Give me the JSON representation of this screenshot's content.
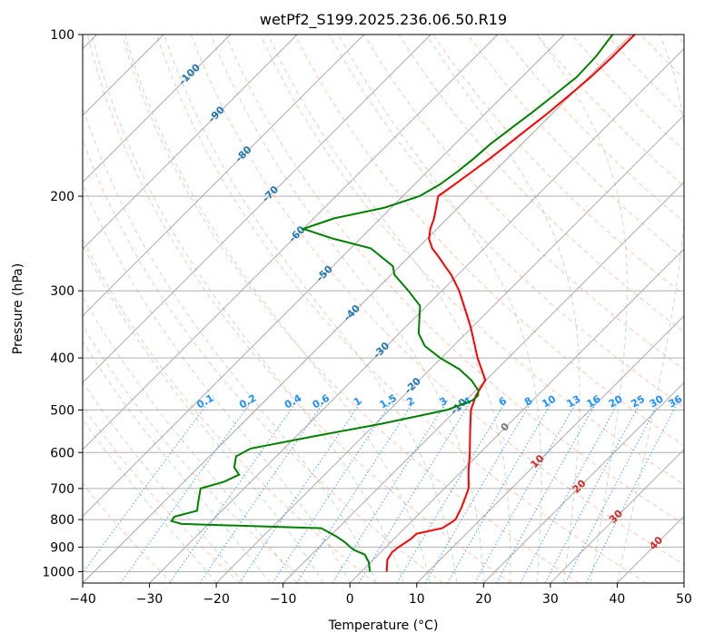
{
  "chart_data": {
    "type": "line",
    "title": "wetPf2_S199.2025.236.06.50.R19",
    "xlabel": "Temperature (°C)",
    "ylabel": "Pressure (hPa)",
    "xlim": [
      -40,
      50
    ],
    "ylim": [
      1050,
      100
    ],
    "y_scale": "log",
    "skew": true,
    "grid": true,
    "x_ticks": [
      "−40",
      "−30",
      "−20",
      "−10",
      "0",
      "10",
      "20",
      "30",
      "40",
      "50"
    ],
    "x_tick_values": [
      -40,
      -30,
      -20,
      -10,
      0,
      10,
      20,
      30,
      40,
      50
    ],
    "y_ticks": [
      "100",
      "200",
      "300",
      "400",
      "500",
      "600",
      "700",
      "800",
      "900",
      "1000"
    ],
    "y_tick_values": [
      100,
      200,
      300,
      400,
      500,
      600,
      700,
      800,
      900,
      1000
    ],
    "colors": {
      "temperature": "#ff0000",
      "dewpoint": "#008000",
      "dry_adiabat": "#ff7f50",
      "moist_adiabat": "#7ab97a",
      "mixing_ratio": "#1e90ff",
      "isotherm": "#888888",
      "isotherm_label": "#1f77b4",
      "theta_label": "#d62728"
    },
    "series": [
      {
        "key": "temperature",
        "pressure": [
          1000,
          950,
          920,
          900,
          870,
          850,
          830,
          810,
          800,
          760,
          700,
          650,
          600,
          550,
          500,
          470,
          460,
          440,
          400,
          350,
          300,
          280,
          270,
          260,
          250,
          240,
          230,
          220,
          210,
          200,
          190,
          180,
          170,
          160,
          150,
          140,
          130,
          120,
          110,
          100
        ],
        "temperature": [
          3.8,
          2.1,
          1.7,
          1.9,
          2.5,
          2.6,
          5.6,
          6.1,
          6.3,
          5.4,
          3.6,
          1.0,
          -1.6,
          -4.6,
          -7.8,
          -9.2,
          -9.5,
          -10.1,
          -14.6,
          -20.3,
          -27.4,
          -31.0,
          -33.2,
          -35.4,
          -37.8,
          -39.7,
          -41.0,
          -42.0,
          -43.3,
          -44.7,
          -44.0,
          -43.3,
          -42.6,
          -42.0,
          -41.4,
          -40.7,
          -40.2,
          -39.7,
          -39.5,
          -39.5
        ]
      },
      {
        "key": "dewpoint",
        "pressure": [
          1000,
          960,
          930,
          910,
          880,
          860,
          845,
          830,
          815,
          805,
          790,
          770,
          745,
          720,
          700,
          680,
          660,
          640,
          610,
          590,
          560,
          530,
          500,
          480,
          470,
          460,
          440,
          420,
          400,
          380,
          360,
          340,
          320,
          300,
          280,
          270,
          250,
          240,
          230,
          220,
          210,
          200,
          190,
          180,
          170,
          160,
          150,
          140,
          130,
          120,
          110,
          100
        ],
        "temperature": [
          1.3,
          -0.3,
          -2.0,
          -4.5,
          -7.0,
          -9.0,
          -10.7,
          -12.5,
          -34.0,
          -36.0,
          -36.2,
          -33.7,
          -34.7,
          -35.7,
          -36.5,
          -34.0,
          -32.8,
          -34.6,
          -36.0,
          -35.0,
          -27.4,
          -19.0,
          -11.4,
          -9.0,
          -8.9,
          -9.6,
          -12.2,
          -15.6,
          -20.2,
          -24.3,
          -27.1,
          -29.0,
          -31.0,
          -35.0,
          -39.5,
          -41.0,
          -47.0,
          -54.0,
          -60.0,
          -57.0,
          -51.0,
          -47.5,
          -46.2,
          -45.5,
          -45.0,
          -44.7,
          -44.0,
          -43.2,
          -42.5,
          -41.8,
          -42.0,
          -42.8
        ]
      }
    ],
    "isotherm_labels": [
      "-100",
      "-90",
      "-80",
      "-70",
      "-60",
      "-50",
      "-40",
      "-30",
      "-20",
      "-10",
      "0",
      "10",
      "20",
      "30",
      "40"
    ],
    "mixing_ratio_labels": [
      "0.1",
      "0.2",
      "0.4",
      "0.6",
      "1",
      "1.5",
      "2",
      "3",
      "4",
      "6",
      "8",
      "10",
      "13",
      "16",
      "20",
      "25",
      "30",
      "36"
    ]
  }
}
